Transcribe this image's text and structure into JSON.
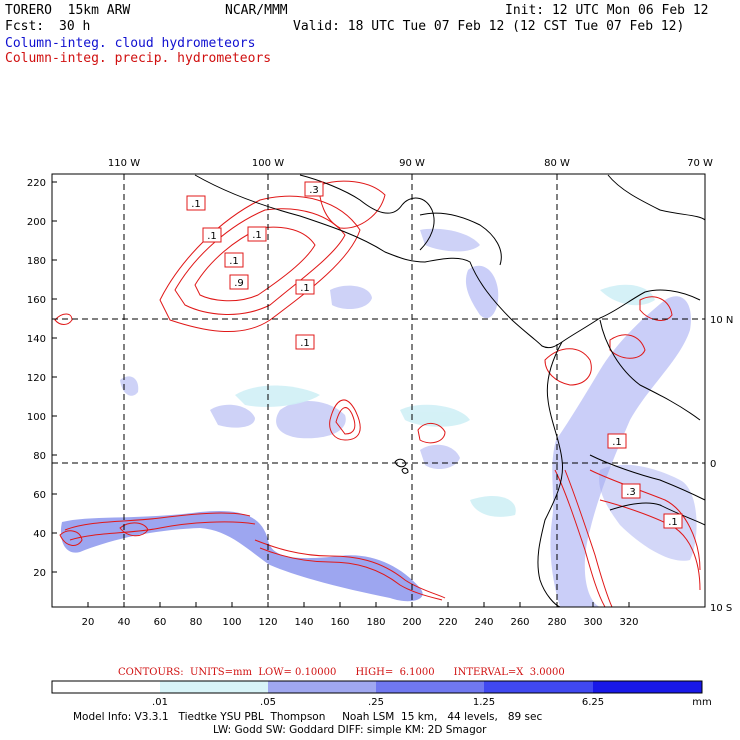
{
  "header": {
    "model": "TORERO  15km ARW",
    "org": "NCAR/MMM",
    "init": "Init: 12 UTC Mon 06 Feb 12",
    "fcst_label": "Fcst:",
    "fcst_value": "30 h",
    "valid": "Valid: 18 UTC Tue 07 Feb 12 (12 CST Tue 07 Feb 12)"
  },
  "legend": {
    "cloud": "Column-integ. cloud hydrometeors",
    "precip": "Column-integ. precip. hydrometeors",
    "cloud_color": "#1010d0",
    "precip_color": "#d01010"
  },
  "map": {
    "lon_labels": [
      "110 W",
      "100 W",
      "90 W",
      "80 W",
      "70 W"
    ],
    "lat_labels": [
      "10 N",
      "0",
      "10 S"
    ],
    "y_ticks": [
      "220",
      "200",
      "180",
      "160",
      "140",
      "120",
      "100",
      "80",
      "60",
      "40",
      "20"
    ],
    "x_ticks": [
      "20",
      "40",
      "60",
      "80",
      "100",
      "120",
      "140",
      "160",
      "180",
      "200",
      "220",
      "240",
      "260",
      "280",
      "300",
      "320"
    ],
    "contour_labels": [
      ".1",
      ".3",
      ".1",
      ".1",
      ".1",
      ".9",
      ".1",
      ".1",
      ".1",
      ".3",
      ".1"
    ]
  },
  "contour_info": "CONTOURS:  UNITS=mm  LOW= 0.10000      HIGH=  6.1000      INTERVAL=X  3.0000",
  "colorbar": {
    "labels": [
      ".01",
      ".05",
      ".25",
      "1.25",
      "6.25"
    ],
    "unit": "mm",
    "colors": [
      "#ffffff",
      "#d8f4f8",
      "#a0a8f0",
      "#7078f0",
      "#4048f0",
      "#1818e8"
    ]
  },
  "footer": {
    "line1": "Model Info: V3.3.1   Tiedtke YSU PBL  Thompson     Noah LSM  15 km,   44 levels,   89 sec",
    "line2": "LW: Godd SW: Goddard DIFF: simple KM: 2D Smagor"
  }
}
